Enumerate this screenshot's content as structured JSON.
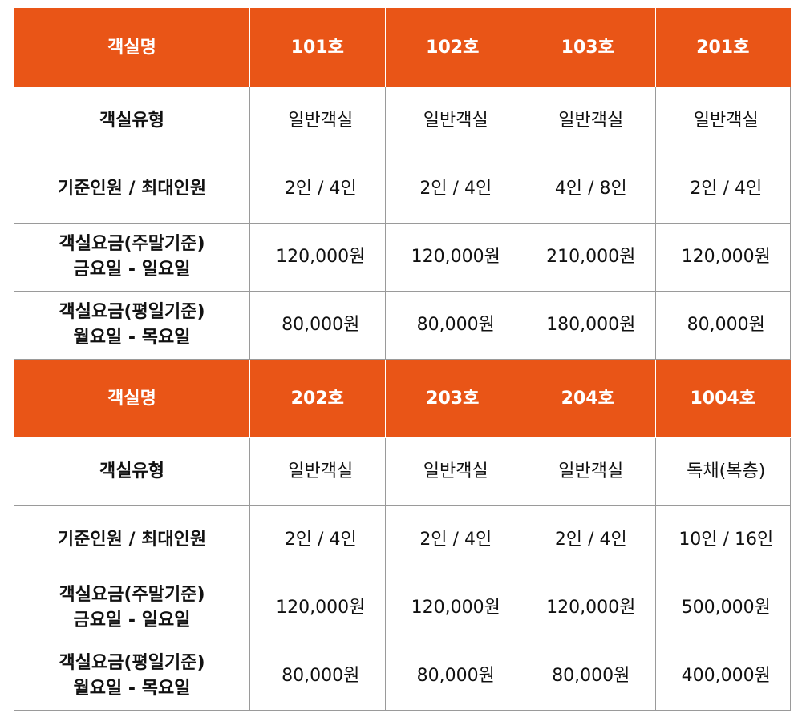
{
  "tables": [
    {
      "header_label": "객실명",
      "rooms": [
        "101호",
        "102호",
        "103호",
        "201호"
      ],
      "rows": [
        {
          "label": [
            "객실유형"
          ],
          "values": [
            "일반객실",
            "일반객실",
            "일반객실",
            "일반객실"
          ]
        },
        {
          "label": [
            "기준인원 / 최대인원"
          ],
          "values": [
            "2인 / 4인",
            "2인 / 4인",
            "4인 / 8인",
            "2인 / 4인"
          ]
        },
        {
          "label": [
            "객실요금(주말기준)",
            "금요일 - 일요일"
          ],
          "values": [
            "120,000원",
            "120,000원",
            "210,000원",
            "120,000원"
          ]
        },
        {
          "label": [
            "객실요금(평일기준)",
            "월요일 - 목요일"
          ],
          "values": [
            "80,000원",
            "80,000원",
            "180,000원",
            "80,000원"
          ]
        }
      ]
    },
    {
      "header_label": "객실명",
      "rooms": [
        "202호",
        "203호",
        "204호",
        "1004호"
      ],
      "rows": [
        {
          "label": [
            "객실유형"
          ],
          "values": [
            "일반객실",
            "일반객실",
            "일반객실",
            "독채(복층)"
          ]
        },
        {
          "label": [
            "기준인원 / 최대인원"
          ],
          "values": [
            "2인 / 4인",
            "2인 / 4인",
            "2인 / 4인",
            "10인 / 16인"
          ]
        },
        {
          "label": [
            "객실요금(주말기준)",
            "금요일 - 일요일"
          ],
          "values": [
            "120,000원",
            "120,000원",
            "120,000원",
            "500,000원"
          ]
        },
        {
          "label": [
            "객실요금(평일기준)",
            "월요일 - 목요일"
          ],
          "values": [
            "80,000원",
            "80,000원",
            "80,000원",
            "400,000원"
          ]
        }
      ]
    }
  ],
  "colors": {
    "header_bg": "#e95517",
    "header_text": "#ffffff",
    "border": "#9a9a9a"
  }
}
